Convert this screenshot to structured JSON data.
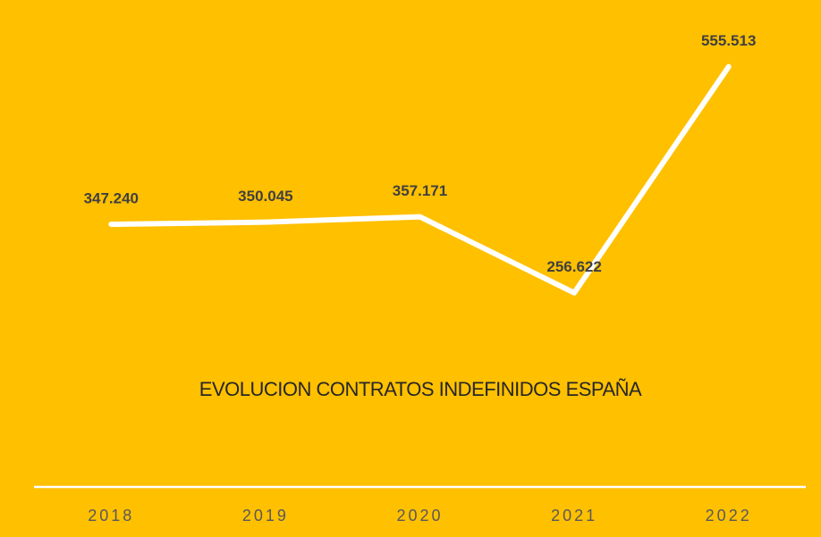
{
  "chart_data": {
    "type": "line",
    "title": "EVOLUCION CONTRATOS INDEFINIDOS ESPAÑA",
    "categories": [
      "2018",
      "2019",
      "2020",
      "2021",
      "2022"
    ],
    "series": [
      {
        "name": "Contratos indefinidos",
        "color": "#ffffff",
        "values": [
          347240,
          350045,
          357171,
          256622,
          555513
        ],
        "value_labels": [
          "347.240",
          "350.045",
          "357.171",
          "256.622",
          "555.513"
        ]
      }
    ],
    "ylim": [
      0,
      600000
    ]
  }
}
